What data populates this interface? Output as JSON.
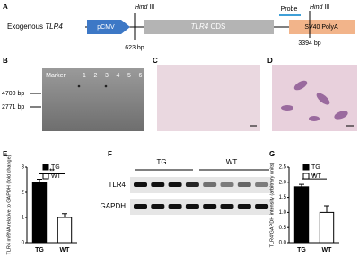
{
  "panels": {
    "a": "A",
    "b": "B",
    "c": "C",
    "d": "D",
    "e": "E",
    "f": "F",
    "g": "G"
  },
  "construct": {
    "label": "Exogenous",
    "gene": "TLR4",
    "promoter": "pCMV",
    "cds": {
      "gene": "TLR4",
      "suffix": "CDS"
    },
    "probe": "Probe",
    "polya": "SV40 PolyA",
    "sites": [
      {
        "enzyme": "Hind",
        "suffix": "III",
        "position": "623 bp"
      },
      {
        "enzyme": "Hind",
        "suffix": "III",
        "position": "3394 bp"
      }
    ]
  },
  "southern": {
    "marker": "Marker",
    "lanes": [
      "1",
      "2",
      "3",
      "4",
      "5",
      "6"
    ],
    "sizes": [
      "4700 bp",
      "2771 bp"
    ]
  },
  "western": {
    "groups": [
      "TG",
      "WT"
    ],
    "rows": [
      "TLR4",
      "GAPDH"
    ]
  },
  "chart_data": [
    {
      "type": "bar",
      "ylabel": "TLR4 mRNA relative to GAPDH (fold change)",
      "categories": [
        "TG",
        "WT"
      ],
      "values": [
        2.4,
        1.0
      ],
      "errors": [
        0.12,
        0.15
      ],
      "colors": [
        "#000000",
        "#ffffff"
      ],
      "ylim": [
        0,
        3
      ],
      "yticks": [
        0,
        1,
        2,
        3
      ],
      "annotation": "**"
    },
    {
      "type": "bar",
      "ylabel": "TLR4/GAPDH intensity (arbitrary units)",
      "categories": [
        "TG",
        "WT"
      ],
      "values": [
        1.85,
        1.0
      ],
      "errors": [
        0.08,
        0.22
      ],
      "colors": [
        "#000000",
        "#ffffff"
      ],
      "ylim": [
        0,
        2.5
      ],
      "yticks": [
        {
          "value": 0,
          "label": "0.0"
        },
        0.5,
        {
          "value": 1,
          "label": "1.0"
        },
        1.5,
        {
          "value": 2,
          "label": "2.0"
        },
        2.5
      ],
      "annotation": "*"
    }
  ]
}
